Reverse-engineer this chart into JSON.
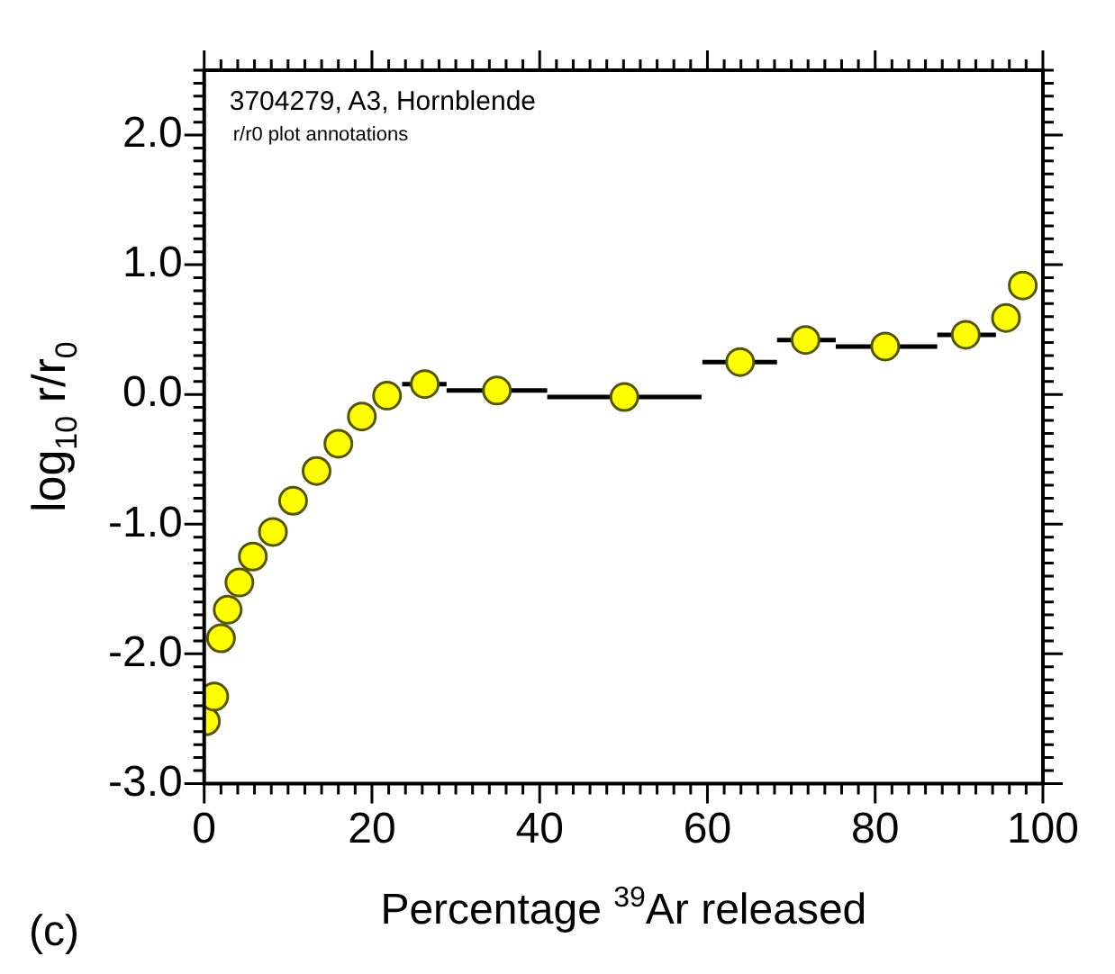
{
  "chart_data": {
    "type": "scatter",
    "xlabel": "Percentage $^{39}$Ar released",
    "ylabel": "log$_{10}$ r/r$_{0}$",
    "annotations": [
      "3704279, A3, Hornblende",
      "r/r0 plot annotations",
      "(c)"
    ],
    "x": [
      0.2,
      1.2,
      2.0,
      2.8,
      4.2,
      5.8,
      8.2,
      10.6,
      13.4,
      16.0,
      18.8,
      21.8,
      26.3,
      34.9,
      50.1,
      63.9,
      71.7,
      81.2,
      90.8,
      95.6,
      97.6
    ],
    "values": [
      -2.52,
      -2.33,
      -1.88,
      -1.66,
      -1.45,
      -1.25,
      -1.06,
      -0.82,
      -0.59,
      -0.38,
      -0.17,
      -0.01,
      0.08,
      0.03,
      -0.02,
      0.25,
      0.42,
      0.37,
      0.46,
      0.59,
      0.84
    ],
    "xerrors": [
      null,
      null,
      null,
      null,
      null,
      null,
      null,
      null,
      null,
      null,
      null,
      null,
      [
        23.6,
        28.9
      ],
      [
        28.9,
        40.9
      ],
      [
        40.9,
        59.3
      ],
      [
        59.4,
        68.3
      ],
      [
        68.3,
        75.3
      ],
      [
        75.3,
        87.4
      ],
      [
        87.4,
        94.4
      ],
      null,
      null
    ],
    "color": "#ffff00",
    "marker": "circle",
    "grid": false,
    "legend": false,
    "xlim": [
      0,
      100
    ],
    "ylim": [
      -3,
      2.5
    ],
    "xticks": [
      {
        "value": 0,
        "label": "0"
      },
      {
        "value": 2,
        "label": null
      },
      {
        "value": 4,
        "label": null
      },
      {
        "value": 6,
        "label": null
      },
      {
        "value": 8,
        "label": null
      },
      {
        "value": 10,
        "label": null
      },
      {
        "value": 12,
        "label": null
      },
      {
        "value": 14,
        "label": null
      },
      {
        "value": 16,
        "label": null
      },
      {
        "value": 18,
        "label": null
      },
      {
        "value": 20,
        "label": "20"
      },
      {
        "value": 22,
        "label": null
      },
      {
        "value": 24,
        "label": null
      },
      {
        "value": 26,
        "label": null
      },
      {
        "value": 28,
        "label": null
      },
      {
        "value": 30,
        "label": null
      },
      {
        "value": 32,
        "label": null
      },
      {
        "value": 34,
        "label": null
      },
      {
        "value": 36,
        "label": null
      },
      {
        "value": 38,
        "label": null
      },
      {
        "value": 40,
        "label": "40"
      },
      {
        "value": 42,
        "label": null
      },
      {
        "value": 44,
        "label": null
      },
      {
        "value": 46,
        "label": null
      },
      {
        "value": 48,
        "label": null
      },
      {
        "value": 50,
        "label": null
      },
      {
        "value": 52,
        "label": null
      },
      {
        "value": 54,
        "label": null
      },
      {
        "value": 56,
        "label": null
      },
      {
        "value": 58,
        "label": null
      },
      {
        "value": 60,
        "label": "60"
      },
      {
        "value": 62,
        "label": null
      },
      {
        "value": 64,
        "label": null
      },
      {
        "value": 66,
        "label": null
      },
      {
        "value": 68,
        "label": null
      },
      {
        "value": 70,
        "label": null
      },
      {
        "value": 72,
        "label": null
      },
      {
        "value": 74,
        "label": null
      },
      {
        "value": 76,
        "label": null
      },
      {
        "value": 78,
        "label": null
      },
      {
        "value": 80,
        "label": "80"
      },
      {
        "value": 82,
        "label": null
      },
      {
        "value": 84,
        "label": null
      },
      {
        "value": 86,
        "label": null
      },
      {
        "value": 88,
        "label": null
      },
      {
        "value": 90,
        "label": null
      },
      {
        "value": 92,
        "label": null
      },
      {
        "value": 94,
        "label": null
      },
      {
        "value": 96,
        "label": null
      },
      {
        "value": 98,
        "label": null
      },
      {
        "value": 100,
        "label": "100"
      }
    ],
    "yticks": [
      {
        "value": -3,
        "label": "-3.0"
      },
      {
        "value": -2.9,
        "label": null
      },
      {
        "value": -2.8,
        "label": null
      },
      {
        "value": -2.7,
        "label": null
      },
      {
        "value": -2.6,
        "label": null
      },
      {
        "value": -2.5,
        "label": null
      },
      {
        "value": -2.4,
        "label": null
      },
      {
        "value": -2.3,
        "label": null
      },
      {
        "value": -2.2,
        "label": null
      },
      {
        "value": -2.1,
        "label": null
      },
      {
        "value": -2,
        "label": "-2.0"
      },
      {
        "value": -1.9,
        "label": null
      },
      {
        "value": -1.8,
        "label": null
      },
      {
        "value": -1.7,
        "label": null
      },
      {
        "value": -1.6,
        "label": null
      },
      {
        "value": -1.5,
        "label": null
      },
      {
        "value": -1.4,
        "label": null
      },
      {
        "value": -1.3,
        "label": null
      },
      {
        "value": -1.2,
        "label": null
      },
      {
        "value": -1.1,
        "label": null
      },
      {
        "value": -1,
        "label": "-1.0"
      },
      {
        "value": -0.9,
        "label": null
      },
      {
        "value": -0.8,
        "label": null
      },
      {
        "value": -0.7,
        "label": null
      },
      {
        "value": -0.6,
        "label": null
      },
      {
        "value": -0.5,
        "label": null
      },
      {
        "value": -0.4,
        "label": null
      },
      {
        "value": -0.3,
        "label": null
      },
      {
        "value": -0.2,
        "label": null
      },
      {
        "value": -0.1,
        "label": null
      },
      {
        "value": 0,
        "label": "0.0"
      },
      {
        "value": 0.1,
        "label": null
      },
      {
        "value": 0.2,
        "label": null
      },
      {
        "value": 0.3,
        "label": null
      },
      {
        "value": 0.4,
        "label": null
      },
      {
        "value": 0.5,
        "label": null
      },
      {
        "value": 0.6,
        "label": null
      },
      {
        "value": 0.7,
        "label": null
      },
      {
        "value": 0.8,
        "label": null
      },
      {
        "value": 0.9,
        "label": null
      },
      {
        "value": 1,
        "label": "1.0"
      },
      {
        "value": 1.1,
        "label": null
      },
      {
        "value": 1.2,
        "label": null
      },
      {
        "value": 1.3,
        "label": null
      },
      {
        "value": 1.4,
        "label": null
      },
      {
        "value": 1.5,
        "label": null
      },
      {
        "value": 1.6,
        "label": null
      },
      {
        "value": 1.7,
        "label": null
      },
      {
        "value": 1.8,
        "label": null
      },
      {
        "value": 1.9,
        "label": null
      },
      {
        "value": 2,
        "label": "2.0"
      },
      {
        "value": 2.1,
        "label": null
      },
      {
        "value": 2.2,
        "label": null
      },
      {
        "value": 2.3,
        "label": null
      },
      {
        "value": 2.4,
        "label": null
      },
      {
        "value": 2.5,
        "label": null
      }
    ]
  }
}
